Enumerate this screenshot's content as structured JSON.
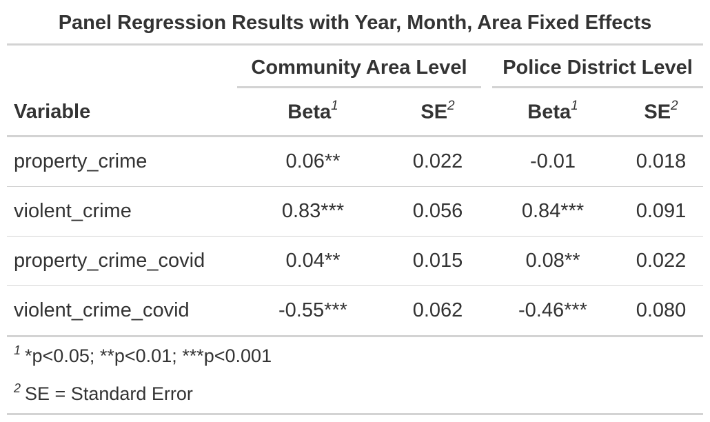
{
  "title": "Panel Regression Results with Year, Month, Area Fixed Effects",
  "spanners": {
    "community": "Community Area Level",
    "police": "Police District Level"
  },
  "columns": {
    "variable": "Variable",
    "beta": "Beta",
    "se": "SE",
    "beta_mark": "1",
    "se_mark": "2"
  },
  "rows": [
    {
      "variable": "property_crime",
      "ca_beta": "0.06**",
      "ca_se": "0.022",
      "pd_beta": "-0.01",
      "pd_se": "0.018"
    },
    {
      "variable": "violent_crime",
      "ca_beta": "0.83***",
      "ca_se": "0.056",
      "pd_beta": "0.84***",
      "pd_se": "0.091"
    },
    {
      "variable": "property_crime_covid",
      "ca_beta": "0.04**",
      "ca_se": "0.015",
      "pd_beta": "0.08**",
      "pd_se": "0.022"
    },
    {
      "variable": "violent_crime_covid",
      "ca_beta": "-0.55***",
      "ca_se": "0.062",
      "pd_beta": "-0.46***",
      "pd_se": "0.080"
    }
  ],
  "footnotes": [
    {
      "mark": "1",
      "text": "*p<0.05; **p<0.01; ***p<0.001"
    },
    {
      "mark": "2",
      "text": "SE = Standard Error"
    }
  ]
}
